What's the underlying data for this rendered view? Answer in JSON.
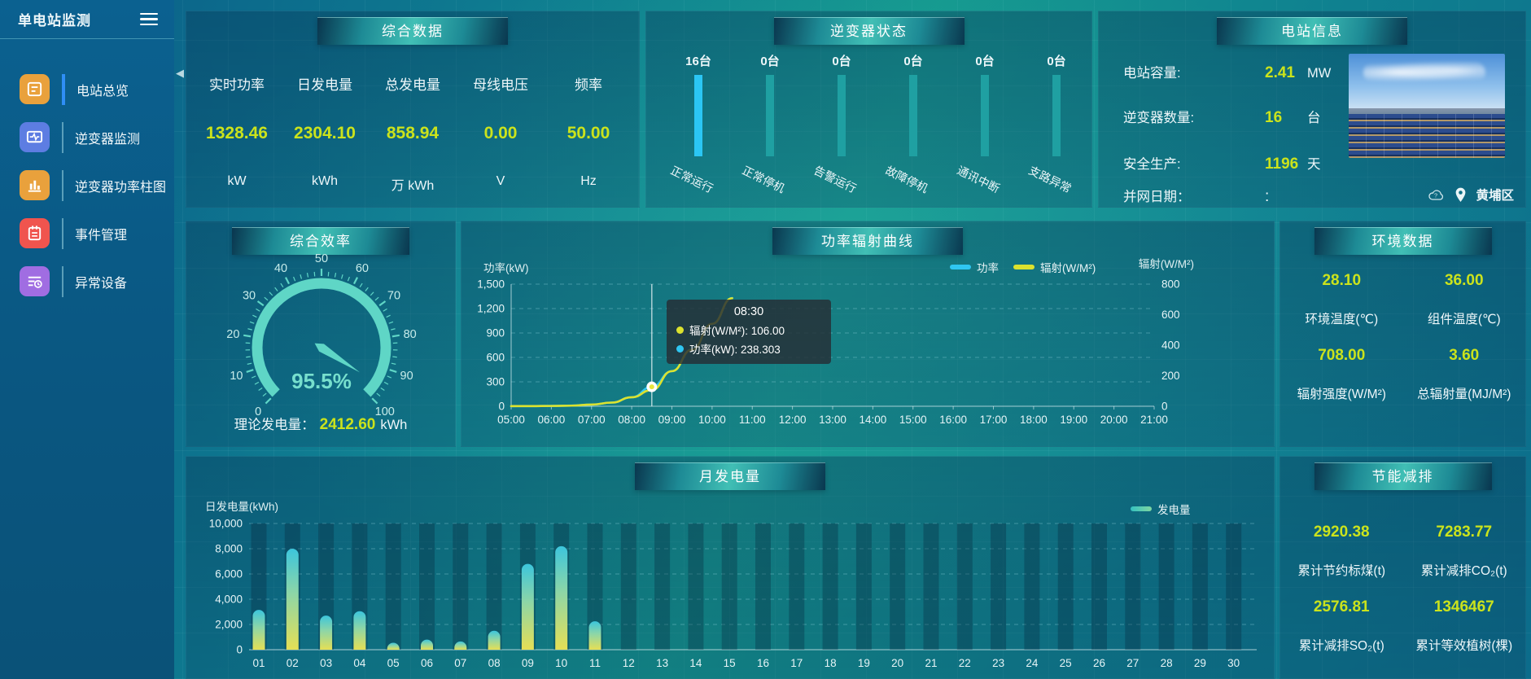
{
  "app": {
    "title": "单电站监测"
  },
  "sidebar": {
    "items": [
      {
        "label": "电站总览",
        "icon": "station-overview-icon",
        "color": "#e9a13c",
        "active": true
      },
      {
        "label": "逆变器监测",
        "icon": "inverter-monitor-icon",
        "color": "#5d7de2",
        "active": false
      },
      {
        "label": "逆变器功率柱图",
        "icon": "inverter-power-bars-icon",
        "color": "#e9a13c",
        "active": false
      },
      {
        "label": "事件管理",
        "icon": "event-management-icon",
        "color": "#f0544e",
        "active": false
      },
      {
        "label": "异常设备",
        "icon": "abnormal-device-icon",
        "color": "#a06de2",
        "active": false
      }
    ]
  },
  "summary": {
    "title": "综合数据",
    "metrics": [
      {
        "label": "实时功率",
        "value": "1328.46",
        "unit": "kW"
      },
      {
        "label": "日发电量",
        "value": "2304.10",
        "unit": "kWh"
      },
      {
        "label": "总发电量",
        "value": "858.94",
        "unit": "万 kWh"
      },
      {
        "label": "母线电压",
        "value": "0.00",
        "unit": "V"
      },
      {
        "label": "频率",
        "value": "50.00",
        "unit": "Hz"
      }
    ]
  },
  "inverter_status": {
    "title": "逆变器状态",
    "items": [
      {
        "count": "16台",
        "label": "正常运行",
        "highlight": true
      },
      {
        "count": "0台",
        "label": "正常停机",
        "highlight": false
      },
      {
        "count": "0台",
        "label": "告警运行",
        "highlight": false
      },
      {
        "count": "0台",
        "label": "故障停机",
        "highlight": false
      },
      {
        "count": "0台",
        "label": "通讯中断",
        "highlight": false
      },
      {
        "count": "0台",
        "label": "支路异常",
        "highlight": false
      }
    ]
  },
  "station_info": {
    "title": "电站信息",
    "rows": [
      {
        "label": "电站容量:",
        "value": "2.41",
        "unit": "MW",
        "plain": false
      },
      {
        "label": "逆变器数量:",
        "value": "16",
        "unit": "台",
        "plain": false
      },
      {
        "label": "安全生产:",
        "value": "1196",
        "unit": "天",
        "plain": false
      },
      {
        "label": "并网日期：",
        "value": ":",
        "unit": "",
        "plain": true
      }
    ],
    "location": "黄埔区"
  },
  "efficiency": {
    "title": "综合效率",
    "footer_label": "理论发电量：",
    "footer_value": "2412.60",
    "footer_unit": "kWh"
  },
  "power_curve": {
    "title": "功率辐射曲线"
  },
  "environment": {
    "title": "环境数据",
    "metrics": [
      {
        "value": "28.10",
        "label": "环境温度(℃)"
      },
      {
        "value": "36.00",
        "label": "组件温度(℃)"
      },
      {
        "value": "708.00",
        "label": "辐射强度(W/M²)"
      },
      {
        "value": "3.60",
        "label": "总辐射量(MJ/M²)"
      }
    ]
  },
  "monthly": {
    "title": "月发电量"
  },
  "energy_saving": {
    "title": "节能减排",
    "metrics": [
      {
        "value": "2920.38",
        "label": "累计节约标煤(t)"
      },
      {
        "value": "7283.77",
        "label": "累计减排CO₂(t)"
      },
      {
        "value": "2576.81",
        "label": "累计减排SO₂(t)"
      },
      {
        "value": "1346467",
        "label": "累计等效植树(棵)"
      }
    ]
  },
  "chart_data": [
    {
      "id": "efficiency-gauge",
      "type": "gauge",
      "title": "综合效率",
      "value": 95.5,
      "display": "95.5%",
      "min": 0,
      "max": 100,
      "tick_labels": [
        0,
        10,
        20,
        30,
        40,
        50,
        60,
        70,
        80,
        90,
        100
      ],
      "color": "#5fd6c6"
    },
    {
      "id": "power-radiation-curve",
      "type": "line",
      "title": "功率辐射曲线",
      "x": [
        "05:00",
        "05:30",
        "06:00",
        "06:30",
        "07:00",
        "07:30",
        "08:00",
        "08:30",
        "09:00",
        "09:30",
        "10:00",
        "10:30"
      ],
      "x_ticks": [
        "05:00",
        "06:00",
        "07:00",
        "08:00",
        "09:00",
        "10:00",
        "11:00",
        "12:00",
        "13:00",
        "14:00",
        "15:00",
        "16:00",
        "17:00",
        "18:00",
        "19:00",
        "20:00",
        "21:00"
      ],
      "left_axis": {
        "name": "功率(kW)",
        "min": 0,
        "max": 1500,
        "ticks": [
          1500,
          1200,
          900,
          600,
          300,
          0
        ]
      },
      "right_axis": {
        "name": "辐射(W/M²)",
        "min": 0,
        "max": 800,
        "ticks": [
          800,
          600,
          400,
          200,
          0
        ]
      },
      "series": [
        {
          "name": "功率",
          "axis": "left",
          "color": "#2fc6f2",
          "values": [
            1,
            2,
            4,
            8,
            20,
            45,
            110,
            238.3,
            430,
            700,
            1010,
            1330
          ]
        },
        {
          "name": "辐射(W/M²)",
          "axis": "right",
          "color": "#dce22e",
          "values": [
            1,
            1,
            2,
            4,
            11,
            24,
            59,
            106,
            230,
            370,
            540,
            708
          ]
        }
      ],
      "tooltip": {
        "time": "08:30",
        "rows": [
          {
            "color": "#dce22e",
            "text": "辐射(W/M²): 106.00"
          },
          {
            "color": "#2fc6f2",
            "text": "功率(kW): 238.303"
          }
        ]
      },
      "highlight": {
        "x": "08:30",
        "series": "功率",
        "value": 238.303
      },
      "grid": true,
      "legend_position": "top-center-right"
    },
    {
      "id": "monthly-generation",
      "type": "bar",
      "title": "月发电量",
      "ylabel": "日发电量(kWh)",
      "legend": "发电量",
      "ylim": [
        0,
        10000
      ],
      "yticks": [
        10000,
        8000,
        6000,
        4000,
        2000,
        0
      ],
      "categories": [
        "01",
        "02",
        "03",
        "04",
        "05",
        "06",
        "07",
        "08",
        "09",
        "10",
        "11",
        "12",
        "13",
        "14",
        "15",
        "16",
        "17",
        "18",
        "19",
        "20",
        "21",
        "22",
        "23",
        "24",
        "25",
        "26",
        "27",
        "28",
        "29",
        "30"
      ],
      "values": [
        3150,
        8000,
        2700,
        3050,
        550,
        800,
        650,
        1500,
        6800,
        8200,
        2250,
        0,
        0,
        0,
        0,
        0,
        0,
        0,
        0,
        0,
        0,
        0,
        0,
        0,
        0,
        0,
        0,
        0,
        0,
        0
      ],
      "bar_gradient": [
        "#e5df55",
        "#3cc5dc"
      ],
      "grid": true
    }
  ]
}
